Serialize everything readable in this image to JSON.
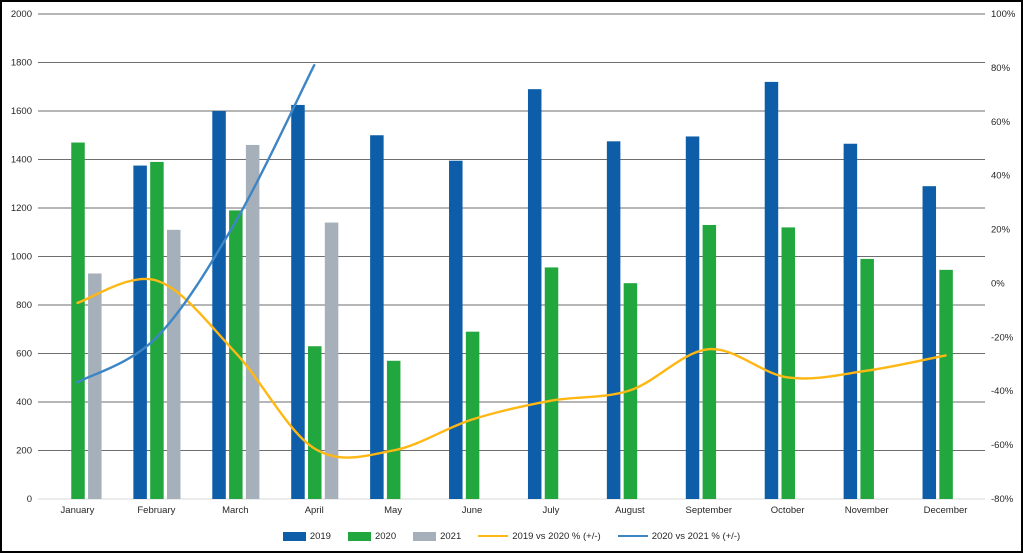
{
  "chart_data": {
    "type": "combo-bar-line",
    "categories": [
      "January",
      "February",
      "March",
      "April",
      "May",
      "June",
      "July",
      "August",
      "September",
      "October",
      "November",
      "December"
    ],
    "bar_series": [
      {
        "name": "2019",
        "color": "#0E5DA8",
        "axis": "left",
        "values": [
          null,
          1375,
          1600,
          1625,
          1500,
          1395,
          1690,
          1475,
          1495,
          1720,
          1465,
          1290
        ]
      },
      {
        "name": "2020",
        "color": "#22A73F",
        "axis": "left",
        "values": [
          1470,
          1390,
          1190,
          630,
          570,
          690,
          955,
          890,
          1130,
          1120,
          990,
          945
        ]
      },
      {
        "name": "2021",
        "color": "#A6B0BB",
        "axis": "left",
        "values": [
          930,
          1110,
          1460,
          1140,
          null,
          null,
          null,
          null,
          null,
          null,
          null,
          null
        ]
      }
    ],
    "line_series": [
      {
        "name": "2019 vs 2020 % (+/-)",
        "color": "#FFB713",
        "axis": "right",
        "smooth": true,
        "values": [
          -7.2,
          1.1,
          -25.6,
          -61.2,
          -62.0,
          -50.5,
          -43.5,
          -39.7,
          -24.4,
          -34.9,
          -32.4,
          -26.7
        ]
      },
      {
        "name": "2020 vs 2021 % (+/-)",
        "color": "#3D86C6",
        "axis": "right",
        "smooth": true,
        "values": [
          -36.7,
          -20.1,
          22.7,
          81.0,
          null,
          null,
          null,
          null,
          null,
          null,
          null,
          null
        ]
      }
    ],
    "left_axis": {
      "min": 0,
      "max": 2000,
      "step": 200,
      "labels": [
        "0",
        "200",
        "400",
        "600",
        "800",
        "1000",
        "1200",
        "1400",
        "1600",
        "1800",
        "2000"
      ]
    },
    "right_axis": {
      "min": -80,
      "max": 100,
      "step": 20,
      "labels": [
        "-80%",
        "-60%",
        "-40%",
        "-20%",
        "0%",
        "20%",
        "40%",
        "60%",
        "80%",
        "100%"
      ]
    },
    "grid": true,
    "legend_position": "bottom"
  },
  "style": {
    "background": "#FFFFFF",
    "border": "#000000",
    "gridline": "#6E6E6E",
    "baseline": "#D9D9D9",
    "text": "#262626"
  }
}
